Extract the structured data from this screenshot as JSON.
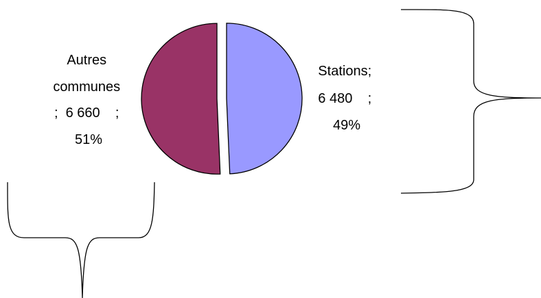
{
  "chart_data": {
    "type": "pie",
    "exploded": true,
    "slices": [
      {
        "category": "Stations",
        "value": 6480,
        "percent": 49,
        "color": "#9999ff",
        "label_lines": [
          "Stations;",
          "6 480    ;",
          "49%"
        ]
      },
      {
        "category": "Autres communes",
        "value": 6660,
        "percent": 51,
        "color": "#993366",
        "label_lines": [
          "Autres",
          "communes",
          ";  6 660    ;",
          "51%"
        ]
      }
    ],
    "annotations": [
      {
        "shape": "right-curly-brace",
        "target": "Stations"
      },
      {
        "shape": "bottom-curly-brace",
        "target": "Autres communes"
      }
    ],
    "legend": "none"
  }
}
